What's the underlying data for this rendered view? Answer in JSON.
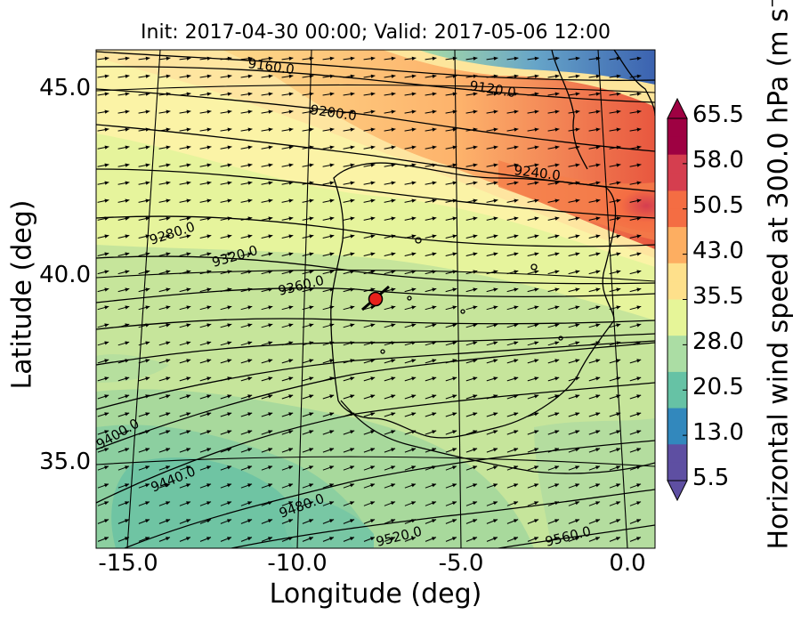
{
  "title": "Init: 2017-04-30 00:00; Valid: 2017-05-06 12:00",
  "x_axis_label": "Longitude (deg)",
  "y_axis_label": "Latitude (deg)",
  "x_ticks": [
    "-15.0",
    "-10.0",
    "-5.0",
    "0.0"
  ],
  "y_ticks": [
    "45.0",
    "40.0",
    "35.0"
  ],
  "colorbar": {
    "label": "Horizontal wind speed at 300.0 hPa (m s",
    "label_unit_exponent": "−1",
    "label_close": ")",
    "ticks": [
      "65.5",
      "58.0",
      "50.5",
      "43.0",
      "35.5",
      "28.0",
      "20.5",
      "13.0",
      "5.5"
    ],
    "colors": [
      "#5e4fa2",
      "#3288bd",
      "#66c2a5",
      "#abdda4",
      "#e6f598",
      "#fee08b",
      "#fdae61",
      "#f46d43",
      "#d53e4f",
      "#9e0142"
    ]
  },
  "contours": [
    {
      "label": "9120.0"
    },
    {
      "label": "9160.0"
    },
    {
      "label": "9200.0"
    },
    {
      "label": "9240.0"
    },
    {
      "label": "9280.0"
    },
    {
      "label": "9320.0"
    },
    {
      "label": "9360.0"
    },
    {
      "label": "9400.0"
    },
    {
      "label": "9440.0"
    },
    {
      "label": "9480.0"
    },
    {
      "label": "9520.0"
    },
    {
      "label": "9560.0"
    }
  ],
  "marker": {
    "lon": -7.6,
    "lat": 39.3,
    "color": "#e8211b"
  },
  "map_extent": {
    "lon_min": -16,
    "lon_max": 0.3,
    "lat_min": 32.8,
    "lat_max": 46
  }
}
